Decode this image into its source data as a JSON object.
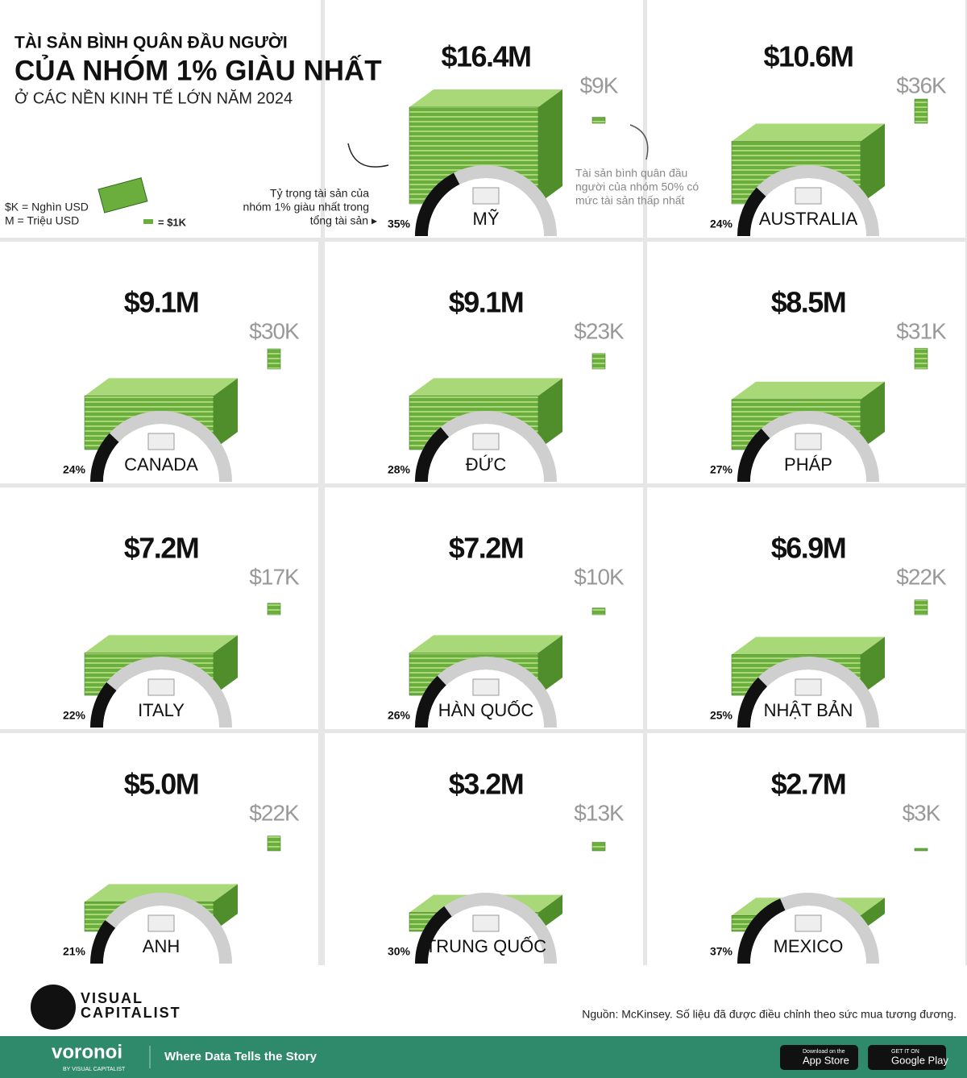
{
  "header": {
    "title_line1": "TÀI SẢN BÌNH QUÂN ĐẦU NGƯỜI",
    "title_line2": "CỦA NHÓM 1% GIÀU NHẤT",
    "subtitle": "Ở CÁC NỀN KINH TẾ LỚN NĂM 2024"
  },
  "legend": {
    "k_unit": "$K = Nghìn USD",
    "m_unit": "M = Triệu USD",
    "bill": "= $1K"
  },
  "annotations": {
    "share_note": [
      "Tỷ trọng tài sản của",
      "nhóm 1% giàu nhất trong",
      "tổng tài sản ▸"
    ],
    "bottom_note": [
      "Tài sản bình quân đầu",
      "người của nhóm 50% có",
      "mức tài sản thấp nhất"
    ]
  },
  "chart_data": {
    "type": "infographic",
    "countries": [
      {
        "name": "MỸ",
        "top1_wealth": 16400000,
        "top1_label": "$16.4M",
        "bottom50_wealth": 9000,
        "bottom50_label": "$9K",
        "share": 35,
        "share_label": "35%"
      },
      {
        "name": "AUSTRALIA",
        "top1_wealth": 10600000,
        "top1_label": "$10.6M",
        "bottom50_wealth": 36000,
        "bottom50_label": "$36K",
        "share": 24,
        "share_label": "24%"
      },
      {
        "name": "CANADA",
        "top1_wealth": 9100000,
        "top1_label": "$9.1M",
        "bottom50_wealth": 30000,
        "bottom50_label": "$30K",
        "share": 24,
        "share_label": "24%"
      },
      {
        "name": "ĐỨC",
        "top1_wealth": 9100000,
        "top1_label": "$9.1M",
        "bottom50_wealth": 23000,
        "bottom50_label": "$23K",
        "share": 28,
        "share_label": "28%"
      },
      {
        "name": "PHÁP",
        "top1_wealth": 8500000,
        "top1_label": "$8.5M",
        "bottom50_wealth": 31000,
        "bottom50_label": "$31K",
        "share": 27,
        "share_label": "27%"
      },
      {
        "name": "ITALY",
        "top1_wealth": 7200000,
        "top1_label": "$7.2M",
        "bottom50_wealth": 17000,
        "bottom50_label": "$17K",
        "share": 22,
        "share_label": "22%"
      },
      {
        "name": "HÀN QUỐC",
        "top1_wealth": 7200000,
        "top1_label": "$7.2M",
        "bottom50_wealth": 10000,
        "bottom50_label": "$10K",
        "share": 26,
        "share_label": "26%"
      },
      {
        "name": "NHẬT BẢN",
        "top1_wealth": 6900000,
        "top1_label": "$6.9M",
        "bottom50_wealth": 22000,
        "bottom50_label": "$22K",
        "share": 25,
        "share_label": "25%"
      },
      {
        "name": "ANH",
        "top1_wealth": 5000000,
        "top1_label": "$5.0M",
        "bottom50_wealth": 22000,
        "bottom50_label": "$22K",
        "share": 21,
        "share_label": "21%"
      },
      {
        "name": "TRUNG QUỐC",
        "top1_wealth": 3200000,
        "top1_label": "$3.2M",
        "bottom50_wealth": 13000,
        "bottom50_label": "$13K",
        "share": 30,
        "share_label": "30%"
      },
      {
        "name": "MEXICO",
        "top1_wealth": 2700000,
        "top1_label": "$2.7M",
        "bottom50_wealth": 3000,
        "bottom50_label": "$3K",
        "share": 37,
        "share_label": "37%"
      }
    ]
  },
  "footer": {
    "brand_line1": "VISUAL",
    "brand_line2": "CAPITALIST",
    "source": "Nguồn: McKinsey. Số liệu đã được điều chỉnh theo sức mua tương đương.",
    "voronoi": "voronoi",
    "voronoi_sub": "BY VISUAL CAPITALIST",
    "tagline": "Where Data Tells the Story",
    "appstore_small": "Download on the",
    "appstore": "App Store",
    "googleplay_small": "GET IT ON",
    "googleplay": "Google Play"
  }
}
